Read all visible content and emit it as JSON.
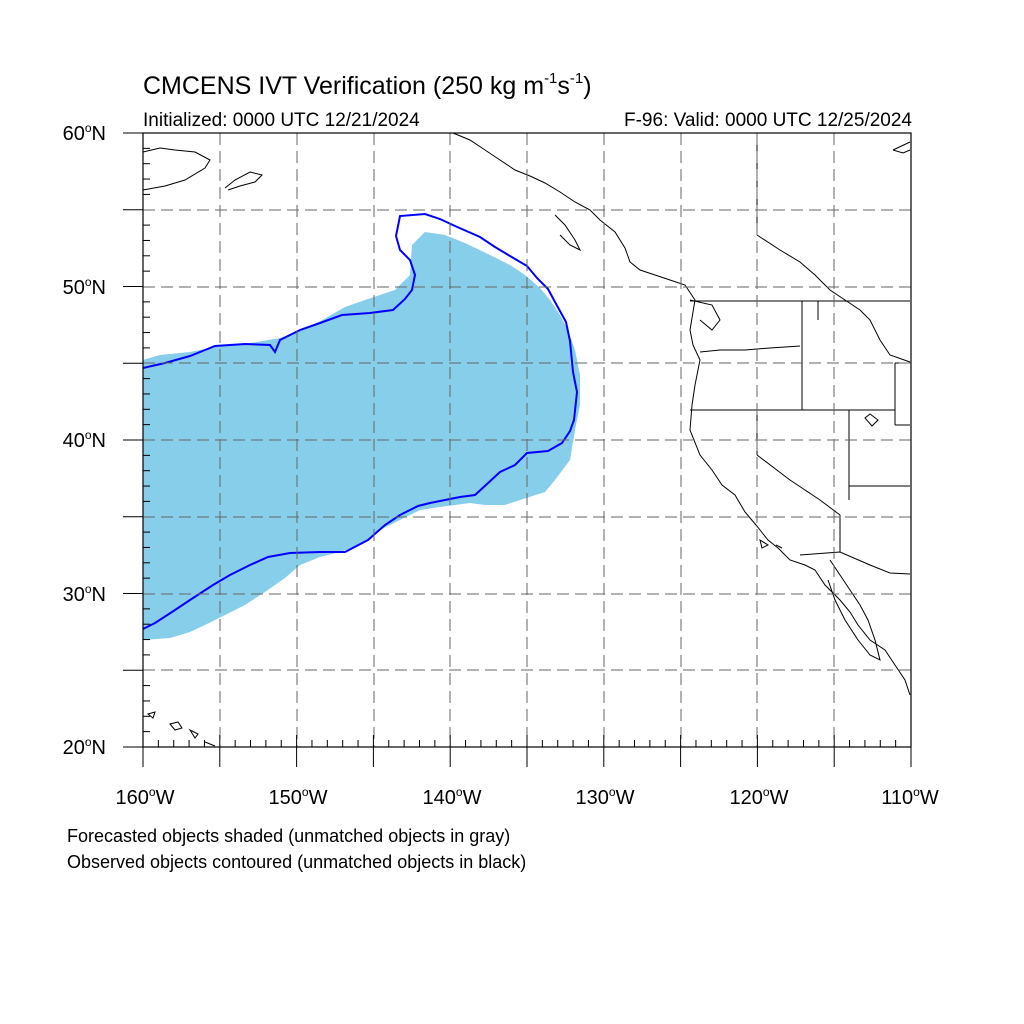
{
  "title": {
    "main": "CMCENS IVT Verification (250 kg m",
    "sup1": "-1",
    "mid": "s",
    "sup2": "-1",
    "end": ")"
  },
  "subtitle": {
    "initialized": "Initialized: 0000 UTC 12/21/2024",
    "valid": "F-96: Valid: 0000 UTC 12/25/2024"
  },
  "map": {
    "lon_range": [
      -160,
      -110
    ],
    "lat_range": [
      20,
      60
    ],
    "lat_labels": [
      {
        "value": "60",
        "hemi": "N"
      },
      {
        "value": "50",
        "hemi": "N"
      },
      {
        "value": "40",
        "hemi": "N"
      },
      {
        "value": "30",
        "hemi": "N"
      },
      {
        "value": "20",
        "hemi": "N"
      }
    ],
    "lon_labels": [
      {
        "value": "160",
        "hemi": "W"
      },
      {
        "value": "150",
        "hemi": "W"
      },
      {
        "value": "140",
        "hemi": "W"
      },
      {
        "value": "130",
        "hemi": "W"
      },
      {
        "value": "120",
        "hemi": "W"
      },
      {
        "value": "110",
        "hemi": "W"
      }
    ],
    "forecast_object_color": "#87ceeb",
    "observed_object_color": "#0000ff",
    "coastline_color": "#000000"
  },
  "notes": {
    "line1": "Forecasted objects shaded (unmatched objects in gray)",
    "line2": "Observed objects contoured (unmatched objects in black)"
  }
}
